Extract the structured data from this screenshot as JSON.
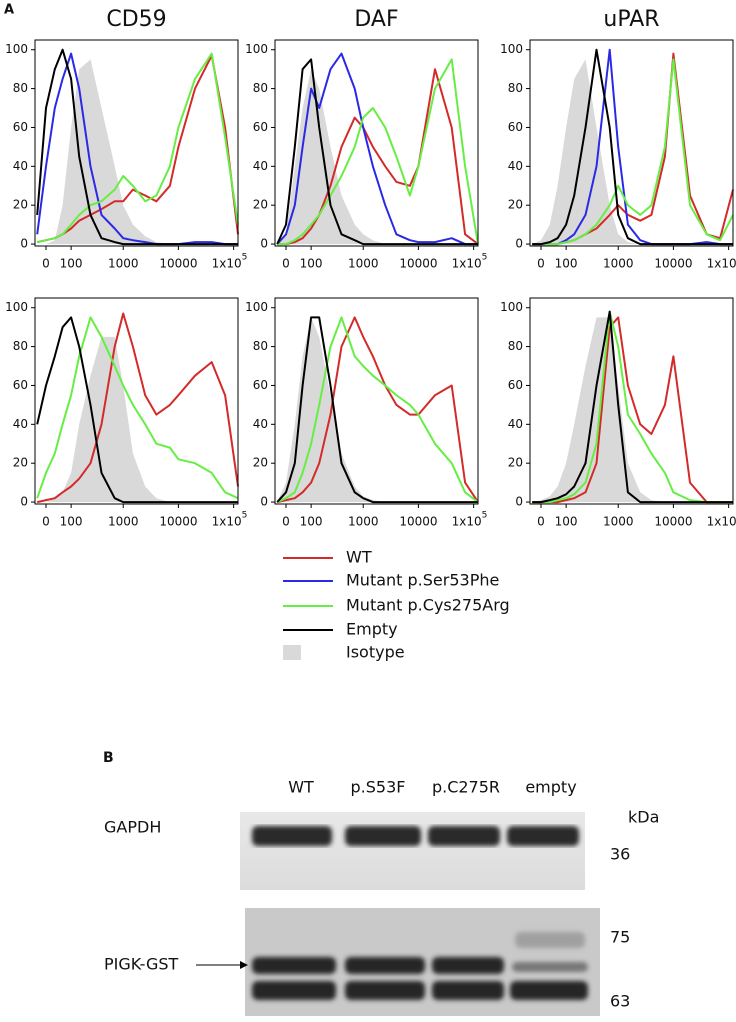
{
  "figure_labels": {
    "a": "A",
    "b": "B"
  },
  "chart_data": [
    {
      "type": "line",
      "title": "CD59",
      "xscale": "asinh",
      "x": [
        -30,
        0,
        30,
        60,
        100,
        150,
        250,
        400,
        700,
        1000,
        1500,
        2500,
        4000,
        7000,
        10000,
        20000,
        40000,
        70000,
        120000
      ],
      "xlim": [
        -38,
        120000
      ],
      "ylim": [
        -1,
        105
      ],
      "xticks": [
        0,
        100,
        1000,
        10000,
        {
          "value": 100000,
          "label": "1x10",
          "exponent": "5"
        }
      ],
      "yticks": [
        0,
        20,
        40,
        60,
        80,
        100
      ],
      "series": [
        {
          "name": "WT",
          "color": "#d42a2a",
          "values": [
            1,
            2,
            3,
            5,
            8,
            12,
            15,
            18,
            22,
            22,
            28,
            25,
            22,
            30,
            50,
            80,
            97,
            60,
            5
          ]
        },
        {
          "name": "Mutant p.Ser53Phe",
          "color": "#2a2ae6",
          "values": [
            5,
            40,
            70,
            85,
            98,
            80,
            40,
            15,
            8,
            3,
            2,
            1,
            0,
            0,
            0,
            1,
            1,
            0,
            0
          ]
        },
        {
          "name": "Mutant p.Cys275Arg",
          "color": "#66ee44",
          "values": [
            1,
            2,
            3,
            5,
            10,
            15,
            20,
            22,
            28,
            35,
            30,
            22,
            25,
            40,
            60,
            85,
            98,
            55,
            10
          ]
        },
        {
          "name": "Empty",
          "color": "#000000",
          "values": [
            15,
            70,
            90,
            100,
            85,
            45,
            15,
            3,
            1,
            0,
            0,
            0,
            0,
            0,
            0,
            0,
            0,
            0,
            0
          ]
        },
        {
          "name": "Isotype",
          "color": "#d9d9d9",
          "area": true,
          "values": [
            0,
            0,
            2,
            20,
            60,
            90,
            95,
            70,
            40,
            20,
            10,
            4,
            1,
            0,
            0,
            0,
            0,
            0,
            0
          ]
        }
      ]
    },
    {
      "type": "line",
      "title": "DAF",
      "xscale": "asinh",
      "x": [
        -30,
        0,
        30,
        60,
        100,
        150,
        250,
        400,
        700,
        1000,
        1500,
        2500,
        4000,
        7000,
        10000,
        20000,
        40000,
        70000,
        120000
      ],
      "xlim": [
        -38,
        120000
      ],
      "ylim": [
        -1,
        105
      ],
      "xticks": [
        0,
        100,
        1000,
        10000,
        {
          "value": 100000,
          "label": "1x10",
          "exponent": "5"
        }
      ],
      "yticks": [
        0,
        20,
        40,
        60,
        80,
        100
      ],
      "series": [
        {
          "name": "WT",
          "color": "#d42a2a",
          "values": [
            0,
            0,
            1,
            3,
            8,
            15,
            30,
            50,
            65,
            60,
            50,
            40,
            32,
            30,
            40,
            90,
            60,
            5,
            0
          ]
        },
        {
          "name": "Mutant p.Ser53Phe",
          "color": "#2a2ae6",
          "values": [
            0,
            5,
            20,
            50,
            80,
            70,
            90,
            98,
            80,
            60,
            40,
            20,
            5,
            2,
            1,
            1,
            3,
            0,
            0
          ]
        },
        {
          "name": "Mutant p.Cys275Arg",
          "color": "#66ee44",
          "values": [
            0,
            0,
            2,
            5,
            10,
            15,
            25,
            35,
            50,
            65,
            70,
            60,
            45,
            25,
            40,
            80,
            95,
            40,
            0
          ]
        },
        {
          "name": "Empty",
          "color": "#000000",
          "values": [
            0,
            10,
            50,
            90,
            95,
            60,
            20,
            5,
            2,
            0,
            0,
            0,
            0,
            0,
            0,
            0,
            0,
            0,
            0
          ]
        },
        {
          "name": "Isotype",
          "color": "#d9d9d9",
          "area": true,
          "values": [
            0,
            5,
            40,
            70,
            90,
            80,
            50,
            25,
            10,
            5,
            2,
            0,
            0,
            0,
            0,
            0,
            0,
            0,
            0
          ]
        }
      ]
    },
    {
      "type": "line",
      "title": "uPAR",
      "xscale": "asinh",
      "x": [
        -30,
        0,
        30,
        60,
        100,
        150,
        250,
        400,
        700,
        1000,
        1500,
        2500,
        4000,
        7000,
        10000,
        20000,
        40000,
        70000,
        120000
      ],
      "xlim": [
        -38,
        120000
      ],
      "ylim": [
        -1,
        105
      ],
      "xticks": [
        0,
        100,
        1000,
        10000,
        {
          "value": 100000,
          "label": "1x10",
          "exponent": "5"
        }
      ],
      "yticks": [
        0,
        20,
        40,
        60,
        80,
        100
      ],
      "series": [
        {
          "name": "WT",
          "color": "#d42a2a",
          "values": [
            0,
            0,
            0,
            0,
            1,
            2,
            5,
            8,
            15,
            20,
            15,
            12,
            15,
            45,
            98,
            25,
            5,
            3,
            28
          ]
        },
        {
          "name": "Mutant p.Ser53Phe",
          "color": "#2a2ae6",
          "values": [
            0,
            0,
            0,
            0,
            2,
            5,
            15,
            40,
            100,
            50,
            10,
            2,
            0,
            0,
            0,
            0,
            1,
            0,
            0
          ]
        },
        {
          "name": "Mutant p.Cys275Arg",
          "color": "#66ee44",
          "values": [
            0,
            0,
            0,
            0,
            1,
            2,
            5,
            10,
            20,
            30,
            20,
            15,
            20,
            50,
            95,
            20,
            5,
            2,
            15
          ]
        },
        {
          "name": "Empty",
          "color": "#000000",
          "values": [
            0,
            0,
            1,
            3,
            10,
            25,
            60,
            100,
            60,
            15,
            3,
            0,
            0,
            0,
            0,
            0,
            0,
            0,
            0
          ]
        },
        {
          "name": "Isotype",
          "color": "#d9d9d9",
          "area": true,
          "values": [
            0,
            2,
            10,
            30,
            60,
            85,
            95,
            60,
            20,
            5,
            1,
            0,
            0,
            0,
            0,
            0,
            0,
            0,
            0
          ]
        }
      ]
    },
    {
      "type": "line",
      "xscale": "asinh",
      "x": [
        -30,
        0,
        30,
        60,
        100,
        150,
        250,
        400,
        700,
        1000,
        1500,
        2500,
        4000,
        7000,
        10000,
        20000,
        40000,
        70000,
        120000
      ],
      "xlim": [
        -38,
        120000
      ],
      "ylim": [
        -1,
        105
      ],
      "xticks": [
        0,
        100,
        1000,
        10000,
        {
          "value": 100000,
          "label": "1x10",
          "exponent": "5"
        }
      ],
      "yticks": [
        0,
        20,
        40,
        60,
        80,
        100
      ],
      "series": [
        {
          "name": "WT",
          "color": "#d42a2a",
          "values": [
            0,
            1,
            2,
            5,
            8,
            12,
            20,
            40,
            80,
            97,
            80,
            55,
            45,
            50,
            55,
            65,
            72,
            55,
            8
          ]
        },
        {
          "name": "Mutant p.Cys275Arg",
          "color": "#66ee44",
          "values": [
            2,
            15,
            25,
            40,
            55,
            75,
            95,
            85,
            70,
            60,
            50,
            40,
            30,
            28,
            22,
            20,
            15,
            5,
            2
          ]
        },
        {
          "name": "Empty",
          "color": "#000000",
          "values": [
            40,
            60,
            75,
            90,
            95,
            80,
            50,
            15,
            2,
            0,
            0,
            0,
            0,
            0,
            0,
            0,
            0,
            0,
            0
          ]
        },
        {
          "name": "Isotype",
          "color": "#d9d9d9",
          "area": true,
          "values": [
            0,
            0,
            2,
            5,
            15,
            40,
            65,
            85,
            85,
            60,
            25,
            8,
            2,
            0,
            0,
            0,
            0,
            0,
            0
          ]
        }
      ]
    },
    {
      "type": "line",
      "xscale": "asinh",
      "x": [
        -30,
        0,
        30,
        60,
        100,
        150,
        250,
        400,
        700,
        1000,
        1500,
        2500,
        4000,
        7000,
        10000,
        20000,
        40000,
        70000,
        120000
      ],
      "xlim": [
        -38,
        120000
      ],
      "ylim": [
        -1,
        105
      ],
      "xticks": [
        0,
        100,
        1000,
        10000,
        {
          "value": 100000,
          "label": "1x10",
          "exponent": "5"
        }
      ],
      "yticks": [
        0,
        20,
        40,
        60,
        80,
        100
      ],
      "series": [
        {
          "name": "WT",
          "color": "#d42a2a",
          "values": [
            0,
            1,
            2,
            5,
            10,
            20,
            45,
            80,
            95,
            85,
            75,
            60,
            50,
            45,
            45,
            55,
            60,
            10,
            0
          ]
        },
        {
          "name": "Mutant p.Cys275Arg",
          "color": "#66ee44",
          "values": [
            0,
            2,
            5,
            15,
            30,
            50,
            80,
            95,
            75,
            70,
            65,
            60,
            55,
            50,
            45,
            30,
            20,
            5,
            0
          ]
        },
        {
          "name": "Empty",
          "color": "#000000",
          "values": [
            0,
            5,
            20,
            60,
            95,
            95,
            60,
            20,
            5,
            2,
            0,
            0,
            0,
            0,
            0,
            0,
            0,
            0,
            0
          ]
        },
        {
          "name": "Isotype",
          "color": "#d9d9d9",
          "area": true,
          "values": [
            0,
            10,
            40,
            75,
            95,
            85,
            55,
            25,
            8,
            3,
            1,
            0,
            0,
            0,
            0,
            0,
            0,
            0,
            0
          ]
        }
      ]
    },
    {
      "type": "line",
      "xscale": "asinh",
      "x": [
        -30,
        0,
        30,
        60,
        100,
        150,
        250,
        400,
        700,
        1000,
        1500,
        2500,
        4000,
        7000,
        10000,
        20000,
        40000,
        70000,
        120000
      ],
      "xlim": [
        -38,
        120000
      ],
      "ylim": [
        -1,
        105
      ],
      "xticks": [
        0,
        100,
        1000,
        10000,
        {
          "value": 100000,
          "label": "1x10",
          "exponent": "5"
        }
      ],
      "yticks": [
        0,
        20,
        40,
        60,
        80,
        100
      ],
      "series": [
        {
          "name": "WT",
          "color": "#d42a2a",
          "values": [
            0,
            0,
            0,
            0,
            1,
            2,
            5,
            20,
            90,
            95,
            60,
            40,
            35,
            50,
            75,
            10,
            0,
            0,
            0
          ]
        },
        {
          "name": "Mutant p.Cys275Arg",
          "color": "#66ee44",
          "values": [
            0,
            0,
            0,
            1,
            2,
            4,
            10,
            30,
            98,
            80,
            45,
            35,
            25,
            15,
            5,
            1,
            0,
            0,
            0
          ]
        },
        {
          "name": "Empty",
          "color": "#000000",
          "values": [
            0,
            0,
            1,
            2,
            4,
            8,
            20,
            60,
            98,
            50,
            5,
            0,
            0,
            0,
            0,
            0,
            0,
            0,
            0
          ]
        },
        {
          "name": "Isotype",
          "color": "#d9d9d9",
          "area": true,
          "values": [
            0,
            1,
            3,
            8,
            20,
            40,
            70,
            95,
            95,
            60,
            20,
            5,
            1,
            0,
            0,
            0,
            0,
            0,
            0
          ]
        }
      ]
    }
  ],
  "blot": {
    "lanes": [
      "WT",
      "p.S53F",
      "p.C275R",
      "empty"
    ],
    "unit": "kDa",
    "rows": [
      {
        "label": "GAPDH",
        "markers": [
          36
        ]
      },
      {
        "label": "PIGK-GST",
        "markers": [
          75,
          63
        ]
      }
    ]
  }
}
